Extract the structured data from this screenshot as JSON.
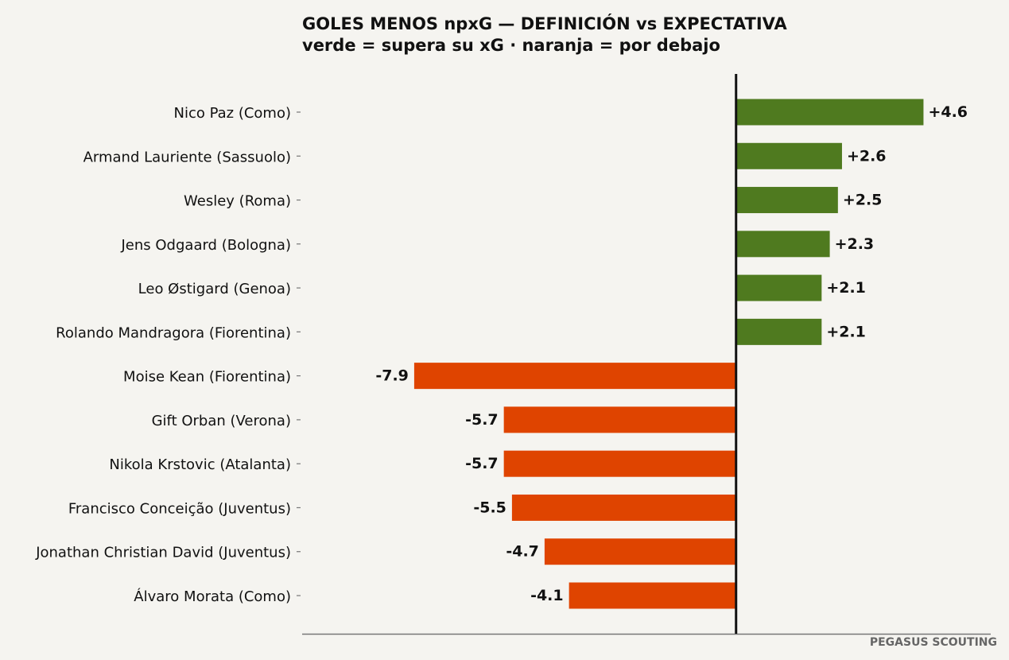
{
  "chart_data": {
    "type": "bar",
    "orientation": "horizontal",
    "title": "GOLES MENOS npxG — DEFINICIÓN vs EXPECTATIVA",
    "subtitle": "verde = supera su xG · naranja = por debajo",
    "categories": [
      "Nico Paz (Como)",
      "Armand Lauriente (Sassuolo)",
      "Wesley (Roma)",
      "Jens Odgaard (Bologna)",
      "Leo Østigard (Genoa)",
      "Rolando Mandragora (Fiorentina)",
      "Moise Kean (Fiorentina)",
      "Gift Orban (Verona)",
      "Nikola Krstovic (Atalanta)",
      "Francisco Conceição (Juventus)",
      "Jonathan Christian David (Juventus)",
      "Álvaro Morata (Como)"
    ],
    "values": [
      4.6,
      2.6,
      2.5,
      2.3,
      2.1,
      2.1,
      -7.9,
      -5.7,
      -5.7,
      -5.5,
      -4.7,
      -4.1
    ],
    "value_labels": [
      "+4.6",
      "+2.6",
      "+2.5",
      "+2.3",
      "+2.1",
      "+2.1",
      "-7.9",
      "-5.7",
      "-5.7",
      "-5.5",
      "-4.7",
      "-4.1"
    ],
    "xlim": [
      -10.65,
      6.25
    ],
    "xlabel": "",
    "ylabel": "",
    "grid": false,
    "colors": {
      "positive": "#4f7a1f",
      "negative": "#df4400",
      "zero_line": "#111111",
      "axis": "#777777",
      "background": "#f5f4f0",
      "text": "#111111"
    }
  },
  "footer": {
    "brand": "PEGASUS SCOUTING"
  }
}
